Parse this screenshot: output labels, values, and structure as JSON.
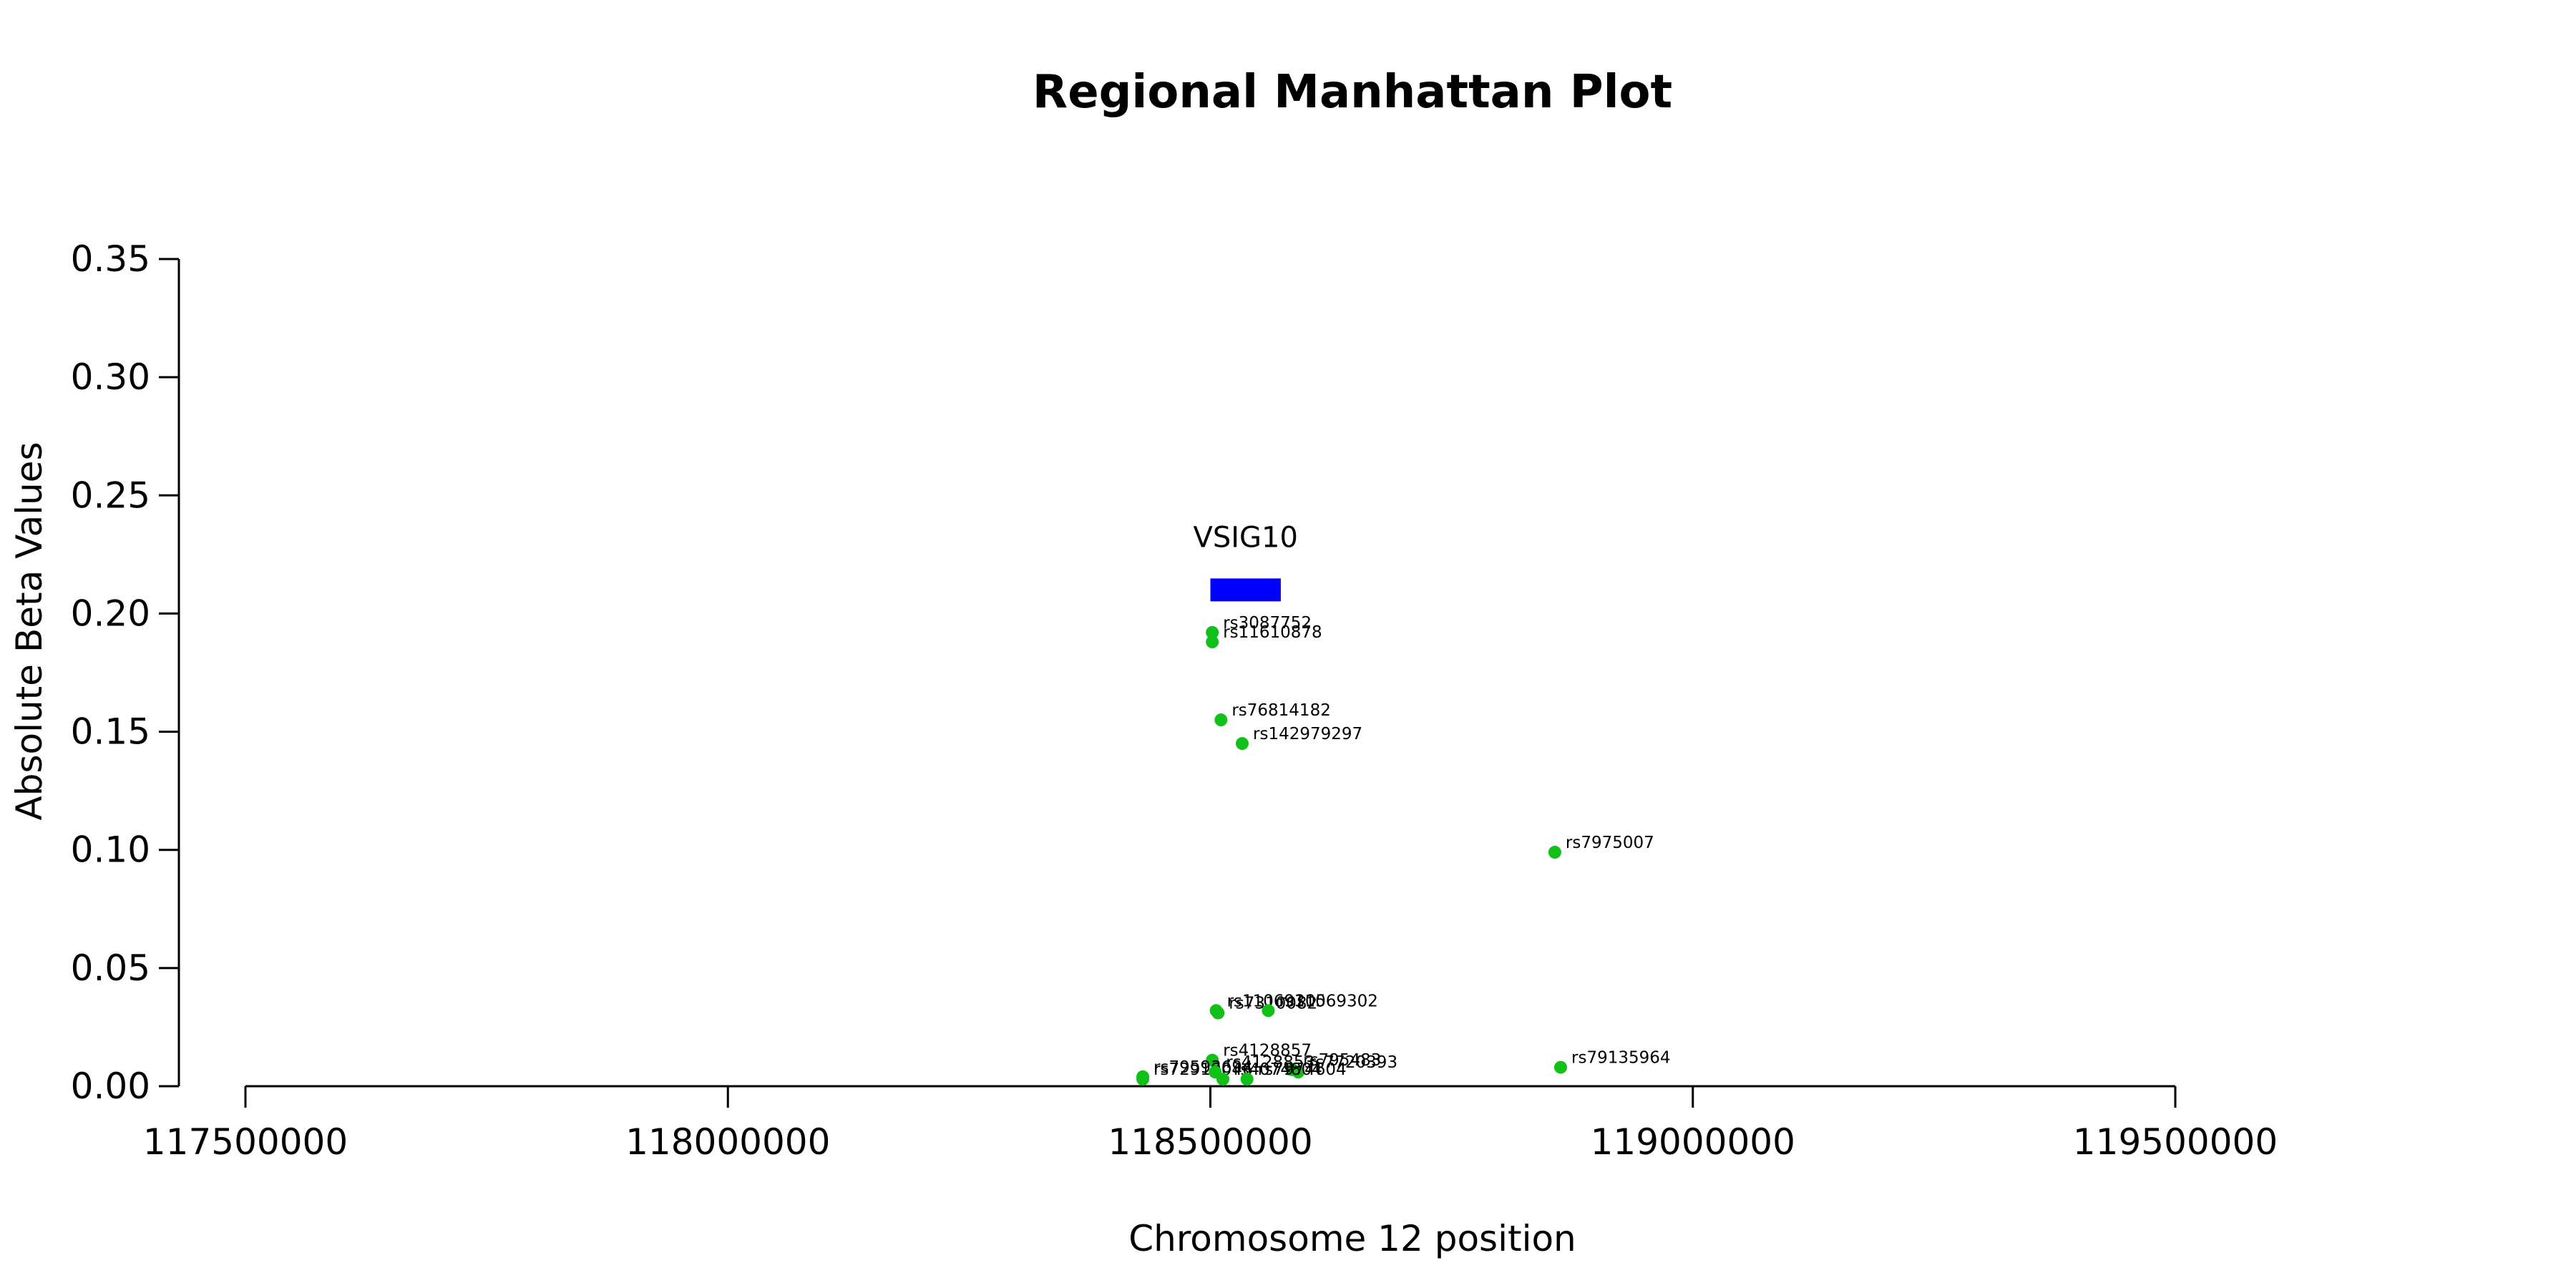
{
  "chart_data": {
    "type": "scatter",
    "title": "Regional Manhattan Plot",
    "xlabel": "Chromosome 12 position",
    "ylabel": "Absolute Beta Values",
    "xlim": [
      117500000,
      119500000
    ],
    "ylim": [
      0,
      0.35
    ],
    "x_ticks": [
      117500000,
      118000000,
      118500000,
      119000000,
      119500000
    ],
    "y_ticks": [
      "0.00",
      "0.05",
      "0.10",
      "0.15",
      "0.20",
      "0.25",
      "0.30",
      "0.35"
    ],
    "point_color": "#11c11a",
    "genes": [
      {
        "name": "VSIG10",
        "start": 118500000,
        "end": 118573000,
        "y": 0.21,
        "color": "#0000ff"
      }
    ],
    "points": [
      {
        "label": "rs3087752",
        "x": 118502000,
        "y": 0.192
      },
      {
        "label": "rs11610878",
        "x": 118502000,
        "y": 0.188
      },
      {
        "label": "rs76814182",
        "x": 118511000,
        "y": 0.155
      },
      {
        "label": "rs142979297",
        "x": 118533000,
        "y": 0.145
      },
      {
        "label": "rs7975007",
        "x": 118857000,
        "y": 0.099
      },
      {
        "label": "rs11069305",
        "x": 118506000,
        "y": 0.032
      },
      {
        "label": "rs7310082",
        "x": 118508000,
        "y": 0.031
      },
      {
        "label": "rs11069302",
        "x": 118560000,
        "y": 0.032
      },
      {
        "label": "rs4128857",
        "x": 118502000,
        "y": 0.011
      },
      {
        "label": "rs795483",
        "x": 118585000,
        "y": 0.007
      },
      {
        "label": "rs7720393",
        "x": 118591000,
        "y": 0.006
      },
      {
        "label": "rs79135964",
        "x": 118863000,
        "y": 0.008
      },
      {
        "label": "rs79593694",
        "x": 118430000,
        "y": 0.004
      },
      {
        "label": "rs72919046",
        "x": 118430000,
        "y": 0.003
      },
      {
        "label": "rs4128853",
        "x": 118505000,
        "y": 0.006
      },
      {
        "label": "rs4074804",
        "x": 118513000,
        "y": 0.003
      },
      {
        "label": "rs7974604",
        "x": 118538000,
        "y": 0.003
      }
    ]
  }
}
